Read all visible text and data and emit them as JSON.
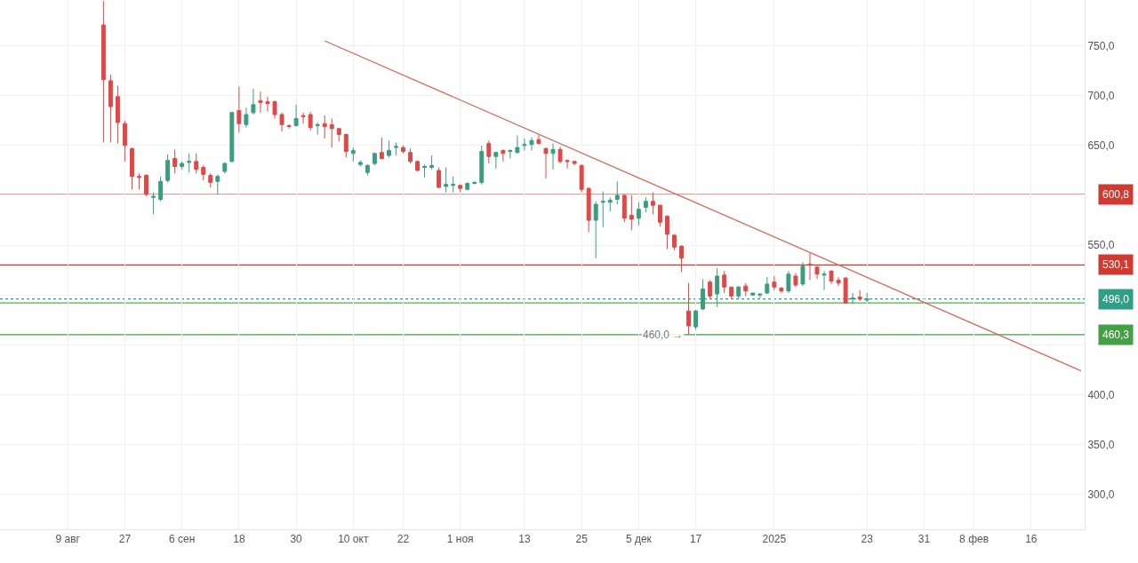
{
  "chart_data": {
    "type": "candlestick",
    "categories": [
      "9 авг",
      null,
      null,
      null,
      null,
      null,
      null,
      null,
      "27",
      null,
      null,
      null,
      null,
      null,
      null,
      null,
      "6 сен",
      null,
      null,
      null,
      null,
      null,
      null,
      null,
      "18",
      null,
      null,
      null,
      null,
      null,
      null,
      null,
      "30",
      null,
      null,
      null,
      null,
      null,
      null,
      null,
      "10 окт",
      null,
      null,
      null,
      null,
      null,
      null,
      "22",
      null,
      null,
      null,
      null,
      null,
      null,
      null,
      "1 ноя",
      null,
      null,
      null,
      null,
      null,
      null,
      null,
      null,
      "13",
      null,
      null,
      null,
      null,
      null,
      null,
      null,
      "25",
      null,
      null,
      null,
      null,
      null,
      null,
      null,
      "5 дек",
      null,
      null,
      null,
      null,
      null,
      null,
      null,
      "17",
      null,
      null,
      null,
      null,
      null,
      null,
      null,
      null,
      null,
      null,
      "2025",
      null,
      null,
      null,
      null,
      null,
      null,
      null,
      null,
      null,
      null,
      null,
      null,
      "23",
      null,
      null,
      null,
      null,
      null,
      null,
      null,
      "31",
      null,
      null,
      null,
      null,
      null,
      null,
      "8 фев",
      null,
      null,
      null,
      null,
      null,
      null,
      null,
      "16",
      null,
      null,
      null,
      null,
      null,
      null,
      null
    ],
    "ohlc": [
      null,
      null,
      null,
      null,
      null,
      [
        771,
        795,
        653,
        716
      ],
      [
        715,
        721,
        653,
        689
      ],
      [
        699,
        710,
        652,
        673
      ],
      [
        672,
        675,
        634,
        650
      ],
      [
        647,
        648,
        606,
        619
      ],
      [
        619,
        622,
        606,
        618
      ],
      [
        620,
        621,
        599,
        601
      ],
      [
        598,
        603,
        581,
        599
      ],
      [
        596,
        619,
        594,
        614
      ],
      [
        615,
        641,
        613,
        635
      ],
      [
        637,
        646,
        622,
        629
      ],
      [
        629,
        634,
        626,
        632
      ],
      [
        633,
        642,
        623,
        634
      ],
      [
        634,
        642,
        622,
        626
      ],
      [
        628,
        630,
        615,
        621
      ],
      [
        620,
        622,
        608,
        613
      ],
      [
        614,
        621,
        601,
        619
      ],
      [
        624,
        633,
        622,
        632
      ],
      [
        634,
        684,
        633,
        683
      ],
      [
        685,
        709,
        663,
        672
      ],
      [
        671,
        688,
        668,
        681
      ],
      [
        683,
        707,
        681,
        691
      ],
      [
        695,
        704,
        683,
        693
      ],
      [
        694,
        699,
        684,
        692
      ],
      [
        694,
        695,
        677,
        681
      ],
      [
        681,
        683,
        664,
        671
      ],
      [
        670,
        671,
        667,
        669
      ],
      [
        670,
        691,
        669,
        677
      ],
      [
        680,
        683,
        672,
        679
      ],
      [
        681,
        684,
        665,
        668
      ],
      [
        670,
        673,
        661,
        671
      ],
      [
        672,
        680,
        657,
        669
      ],
      [
        671,
        677,
        648,
        667
      ],
      [
        667,
        667,
        654,
        661
      ],
      [
        661,
        662,
        638,
        644
      ],
      [
        642,
        648,
        634,
        645
      ],
      [
        631,
        635,
        629,
        633
      ],
      [
        623,
        631,
        620,
        630
      ],
      [
        632,
        643,
        630,
        642
      ],
      [
        643,
        658,
        636,
        637
      ],
      [
        640,
        655,
        638,
        645
      ],
      [
        648,
        653,
        640,
        649
      ],
      [
        648,
        650,
        642,
        644
      ],
      [
        643,
        647,
        632,
        634
      ],
      [
        634,
        635,
        624,
        625
      ],
      [
        628,
        631,
        618,
        629
      ],
      [
        628,
        640,
        626,
        630
      ],
      [
        625,
        628,
        607,
        608
      ],
      [
        609,
        628,
        603,
        611
      ],
      [
        610,
        619,
        603,
        611
      ],
      [
        610,
        611,
        603,
        607
      ],
      [
        606,
        613,
        605,
        612
      ],
      [
        612,
        614,
        611,
        613
      ],
      [
        613,
        650,
        611,
        644
      ],
      [
        652,
        655,
        632,
        639
      ],
      [
        639,
        644,
        627,
        643
      ],
      [
        645,
        646,
        634,
        642
      ],
      [
        644,
        646,
        637,
        645
      ],
      [
        643,
        660,
        642,
        648
      ],
      [
        650,
        657,
        645,
        651
      ],
      [
        651,
        658,
        645,
        655
      ],
      [
        656,
        661,
        651,
        652
      ],
      [
        647,
        648,
        617,
        642
      ],
      [
        642,
        652,
        626,
        646
      ],
      [
        646,
        649,
        632,
        634
      ],
      [
        635,
        636,
        627,
        634
      ],
      [
        634,
        635,
        630,
        632
      ],
      [
        630,
        631,
        603,
        606
      ],
      [
        607,
        608,
        563,
        575
      ],
      [
        575,
        594,
        537,
        591
      ],
      [
        593,
        604,
        568,
        594
      ],
      [
        593,
        598,
        584,
        595
      ],
      [
        596,
        614,
        591,
        600
      ],
      [
        600,
        601,
        573,
        577
      ],
      [
        580,
        600,
        565,
        576
      ],
      [
        577,
        593,
        570,
        586
      ],
      [
        588,
        598,
        583,
        594
      ],
      [
        594,
        603,
        581,
        590
      ],
      [
        590,
        591,
        569,
        573
      ],
      [
        579,
        580,
        546,
        561
      ],
      [
        560,
        561,
        545,
        548
      ],
      [
        549,
        550,
        523,
        537
      ],
      [
        484,
        512,
        460,
        469
      ],
      [
        468,
        485,
        465,
        484
      ],
      [
        486,
        516,
        485,
        506
      ],
      [
        513,
        515,
        496,
        499
      ],
      [
        501,
        527,
        488,
        519
      ],
      [
        520,
        524,
        502,
        508
      ],
      [
        508,
        508,
        496,
        499
      ],
      [
        499,
        509,
        496,
        508
      ],
      [
        509,
        512,
        499,
        504
      ],
      [
        500,
        502,
        499,
        502
      ],
      [
        500,
        501,
        497,
        501
      ],
      [
        502,
        518,
        501,
        511
      ],
      [
        513,
        519,
        505,
        508
      ],
      [
        507,
        508,
        502,
        504
      ],
      [
        504,
        524,
        502,
        521
      ],
      [
        519,
        522,
        508,
        510
      ],
      [
        511,
        533,
        509,
        529
      ],
      [
        531,
        542,
        515,
        530
      ],
      [
        528,
        529,
        516,
        521
      ],
      [
        520,
        524,
        505,
        521
      ],
      [
        524,
        525,
        511,
        514
      ],
      [
        515,
        518,
        509,
        512
      ],
      [
        517,
        518,
        491,
        492
      ],
      [
        496,
        502,
        491,
        497
      ],
      [
        498,
        505,
        494,
        496
      ],
      [
        495,
        502,
        493,
        496
      ],
      null,
      null,
      null,
      null,
      null,
      null,
      null,
      null,
      null,
      null,
      null,
      null,
      null,
      null,
      null,
      null,
      null,
      null,
      null,
      null,
      null,
      null,
      null,
      null,
      null,
      null,
      null,
      null,
      null,
      null
    ],
    "colors": [
      null,
      null,
      null,
      null,
      null,
      "#e04848",
      "#e04848",
      "#e04848",
      "#e04848",
      "#e04848",
      "#e04848",
      "#e04848",
      "#3a9e7e",
      "#3a9e7e",
      "#3a9e7e",
      "#e04848",
      "#3a9e7e",
      "#3a9e7e",
      "#e04848",
      "#e04848",
      "#e04848",
      "#3a9e7e",
      "#3a9e7e",
      "#3a9e7e",
      "#e04848",
      "#3a9e7e",
      "#3a9e7e",
      "#e04848",
      "#e04848",
      "#e04848",
      "#e04848",
      "#e04848",
      "#3a9e7e",
      "#e04848",
      "#e04848",
      "#3a9e7e",
      "#e04848",
      "#e04848",
      "#e04848",
      "#e04848",
      "#3a9e7e",
      "#3a9e7e",
      "#3a9e7e",
      "#3a9e7e",
      "#e04848",
      "#3a9e7e",
      "#3a9e7e",
      "#e04848",
      "#e04848",
      "#e04848",
      "#3a9e7e",
      "#3a9e7e",
      "#e04848",
      "#3a9e7e",
      "#3a9e7e",
      "#e04848",
      "#3a9e7e",
      "#3a9e7e",
      "#3a9e7e",
      "#e04848",
      "#3a9e7e",
      "#e04848",
      "#3a9e7e",
      "#3a9e7e",
      "#3a9e7e",
      "#3a9e7e",
      "#e04848",
      "#e04848",
      "#3a9e7e",
      "#e04848",
      "#e04848",
      "#e04848",
      "#e04848",
      "#e04848",
      "#3a9e7e",
      "#3a9e7e",
      "#3a9e7e",
      "#3a9e7e",
      "#e04848",
      "#e04848",
      "#3a9e7e",
      "#3a9e7e",
      "#e04848",
      "#e04848",
      "#e04848",
      "#e04848",
      "#e04848",
      "#e04848",
      "#3a9e7e",
      "#3a9e7e",
      "#e04848",
      "#3a9e7e",
      "#e04848",
      "#e04848",
      "#3a9e7e",
      "#e04848",
      "#3a9e7e",
      "#3a9e7e",
      "#3a9e7e",
      "#e04848",
      "#e04848",
      "#3a9e7e",
      "#e04848",
      "#3a9e7e",
      "#e04848",
      "#e04848",
      "#3a9e7e",
      "#e04848",
      "#e04848",
      "#e04848",
      "#3a9e7e",
      "#e04848",
      "#3a9e7e",
      null,
      null,
      null,
      null,
      null,
      null,
      null,
      null,
      null,
      null,
      null,
      null,
      null,
      null,
      null,
      null,
      null,
      null,
      null,
      null,
      null,
      null,
      null,
      null,
      null,
      null,
      null,
      null,
      null,
      null
    ],
    "series": [
      {
        "type": "line",
        "values": [
          null,
          null,
          null,
          null,
          null,
          null,
          null,
          null,
          null,
          null,
          null,
          null,
          null,
          null,
          null,
          null,
          null,
          null,
          null,
          null,
          null,
          null,
          null,
          null,
          null,
          null,
          null,
          null,
          null,
          null,
          null,
          null,
          null,
          null,
          null,
          null,
          755,
          null,
          null,
          null,
          null,
          null,
          null,
          null,
          null,
          null,
          null,
          null,
          null,
          null,
          null,
          null,
          null,
          null,
          null,
          null,
          null,
          null,
          null,
          null,
          null,
          null,
          null,
          null,
          null,
          null,
          null,
          null,
          null,
          null,
          null,
          null,
          null,
          null,
          null,
          null,
          null,
          null,
          null,
          null,
          null,
          null,
          null,
          null,
          null,
          null,
          null,
          null,
          null,
          null,
          null,
          null,
          null,
          null,
          null,
          null,
          null,
          null,
          null,
          null,
          null,
          null,
          null,
          null,
          null,
          null,
          null,
          null,
          null,
          null,
          null,
          null,
          null,
          null,
          null,
          null,
          null,
          null,
          null,
          null,
          null,
          null,
          null,
          null,
          null,
          null,
          null,
          null,
          null,
          null,
          null,
          null,
          null,
          null,
          null,
          null,
          null,
          null,
          null,
          null,
          null,
          null,
          424
        ],
        "color": "#d36b5f"
      }
    ],
    "ylim": [
      265,
      796
    ],
    "yticks": [
      {
        "value": 300,
        "label": "300,0"
      },
      {
        "value": 350,
        "label": "350,0"
      },
      {
        "value": 400,
        "label": "400,0"
      },
      {
        "value": 450,
        "label": null
      },
      {
        "value": 500,
        "label": null
      },
      {
        "value": 550,
        "label": "550,0"
      },
      {
        "value": 600,
        "label": null
      },
      {
        "value": 650,
        "label": "650,0"
      },
      {
        "value": 700,
        "label": "700,0"
      },
      {
        "value": 750,
        "label": "750,0"
      }
    ],
    "ref_lines": [
      {
        "axis": "y",
        "value": 600.8,
        "label": "600,8",
        "color": "#d03a30"
      },
      {
        "axis": "y",
        "value": 530.1,
        "label": "530,1",
        "color": "#d03a30"
      },
      {
        "axis": "y",
        "value": 496.0,
        "label": "496,0",
        "color": "#2e9e86",
        "line_style": "dotted"
      },
      {
        "axis": "y",
        "value": 492,
        "label": null,
        "color": "#4caf50"
      },
      {
        "axis": "y",
        "value": 460.3,
        "label": "460,3",
        "color": "#43a047"
      }
    ],
    "annotations": [
      {
        "text": "460,0 →",
        "y": 460
      }
    ],
    "grid": true
  }
}
